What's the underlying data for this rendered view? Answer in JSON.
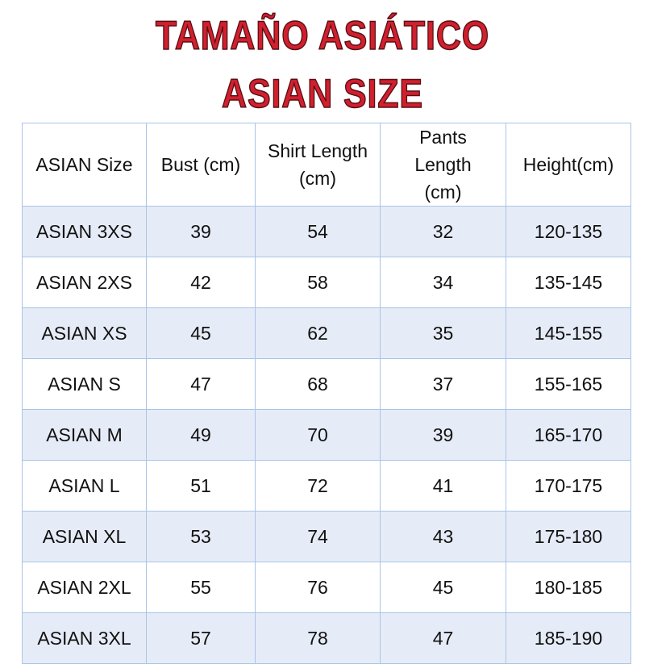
{
  "header": {
    "title": "TAMAÑO ASIÁTICO",
    "subtitle": "ASIAN SIZE"
  },
  "table": {
    "columns": [
      "ASIAN Size",
      "Bust (cm)",
      "Shirt Length (cm)",
      "Pants Length (cm)",
      "Height(cm)"
    ],
    "rows": [
      [
        "ASIAN 3XS",
        39,
        54,
        32,
        "120-135"
      ],
      [
        "ASIAN 2XS",
        42,
        58,
        34,
        "135-145"
      ],
      [
        "ASIAN XS",
        45,
        62,
        35,
        "145-155"
      ],
      [
        "ASIAN S",
        47,
        68,
        37,
        "155-165"
      ],
      [
        "ASIAN M",
        49,
        70,
        39,
        "165-170"
      ],
      [
        "ASIAN L",
        51,
        72,
        41,
        "170-175"
      ],
      [
        "ASIAN XL",
        53,
        74,
        43,
        "175-180"
      ],
      [
        "ASIAN 2XL",
        55,
        76,
        45,
        "180-185"
      ],
      [
        "ASIAN 3XL",
        57,
        78,
        47,
        "185-190"
      ]
    ]
  }
}
